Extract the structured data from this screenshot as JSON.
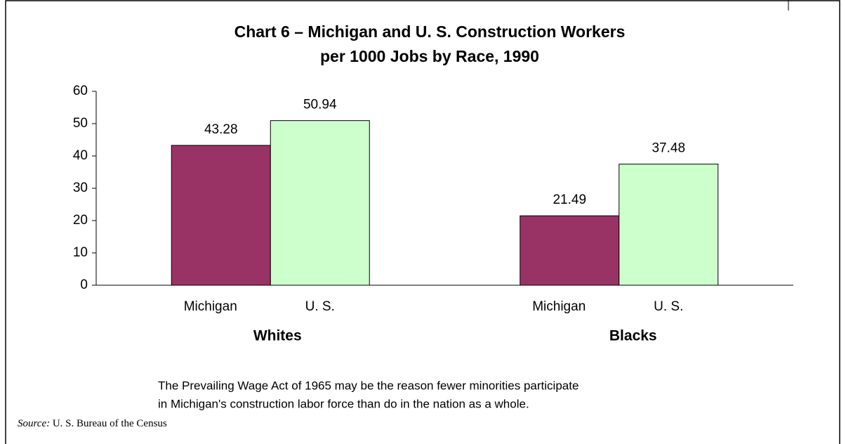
{
  "chart_data": {
    "type": "bar",
    "title": [
      "Chart 6 – Michigan and U. S. Construction Workers",
      "per 1000 Jobs by Race, 1990"
    ],
    "categories": [
      "Whites",
      "Blacks"
    ],
    "series": [
      {
        "name": "Michigan",
        "color": "#993366",
        "values": [
          43.28,
          21.49
        ]
      },
      {
        "name": "U. S.",
        "color": "#ccffcc",
        "values": [
          50.94,
          37.48
        ]
      }
    ],
    "ylim": [
      0,
      60
    ],
    "yticks": [
      0,
      10,
      20,
      30,
      40,
      50,
      60
    ],
    "grid": false,
    "note": [
      "The Prevailing Wage Act of 1965 may be the reason fewer minorities participate",
      "in Michigan's construction labor force than do in the nation as a whole."
    ],
    "source_label": "Source:",
    "source": "U. S. Bureau of the Census"
  }
}
